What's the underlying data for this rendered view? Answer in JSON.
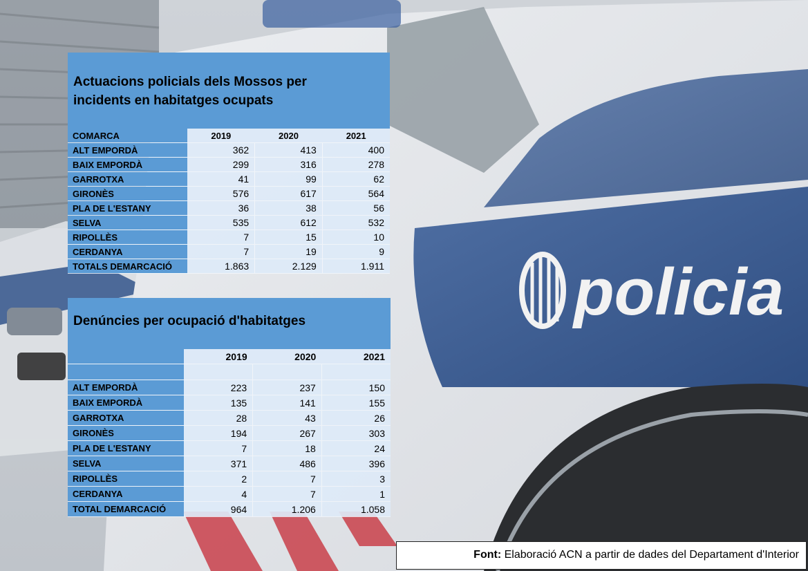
{
  "table1": {
    "title_line1": "Actuacions policials dels Mossos per",
    "title_line2": "incidents en habitatges ocupats",
    "header": [
      "COMARCA",
      "2019",
      "2020",
      "2021"
    ],
    "rows": [
      {
        "name": "ALT EMPORDÀ",
        "v2019": "362",
        "v2020": "413",
        "v2021": "400"
      },
      {
        "name": "BAIX EMPORDÀ",
        "v2019": "299",
        "v2020": "316",
        "v2021": "278"
      },
      {
        "name": "GARROTXA",
        "v2019": "41",
        "v2020": "99",
        "v2021": "62"
      },
      {
        "name": "GIRONÈS",
        "v2019": "576",
        "v2020": "617",
        "v2021": "564"
      },
      {
        "name": "PLA DE L'ESTANY",
        "v2019": "36",
        "v2020": "38",
        "v2021": "56"
      },
      {
        "name": "SELVA",
        "v2019": "535",
        "v2020": "612",
        "v2021": "532"
      },
      {
        "name": "RIPOLLÈS",
        "v2019": "7",
        "v2020": "15",
        "v2021": "10"
      },
      {
        "name": "CERDANYA",
        "v2019": "7",
        "v2020": "19",
        "v2021": "9"
      },
      {
        "name": "TOTALS DEMARCACIÓ",
        "v2019": "1.863",
        "v2020": "2.129",
        "v2021": "1.911"
      }
    ]
  },
  "table2": {
    "title": "Denúncies per ocupació d'habitatges",
    "header": [
      "",
      "2019",
      "2020",
      "2021"
    ],
    "rows": [
      {
        "name": "ALT EMPORDÀ",
        "v2019": "223",
        "v2020": "237",
        "v2021": "150"
      },
      {
        "name": "BAIX EMPORDÀ",
        "v2019": "135",
        "v2020": "141",
        "v2021": "155"
      },
      {
        "name": "GARROTXA",
        "v2019": "28",
        "v2020": "43",
        "v2021": "26"
      },
      {
        "name": "GIRONÈS",
        "v2019": "194",
        "v2020": "267",
        "v2021": "303"
      },
      {
        "name": "PLA DE L'ESTANY",
        "v2019": "7",
        "v2020": "18",
        "v2021": "24"
      },
      {
        "name": "SELVA",
        "v2019": "371",
        "v2020": "486",
        "v2021": "396"
      },
      {
        "name": "RIPOLLÈS",
        "v2019": "2",
        "v2020": "7",
        "v2021": "3"
      },
      {
        "name": "CERDANYA",
        "v2019": "4",
        "v2020": "7",
        "v2021": "1"
      },
      {
        "name": "TOTAL DEMARCACIÓ",
        "v2019": "964",
        "v2020": "1.206",
        "v2021": "1.058"
      }
    ]
  },
  "background": {
    "vehicle_text": "policia",
    "colors": {
      "body_white": "#e6e8eb",
      "livery_blue": "#3d5e92",
      "stripe_red": "#c9404a"
    }
  },
  "source": {
    "label": "Font:",
    "text": " Elaboració ACN a partir de dades del Departament d'Interior"
  }
}
